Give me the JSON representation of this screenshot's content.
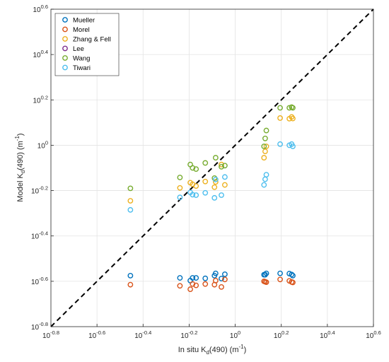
{
  "chart_data": {
    "type": "scatter",
    "xscale": "log",
    "yscale": "log",
    "xlim_log10": [
      -0.8,
      0.6
    ],
    "ylim_log10": [
      -0.8,
      0.6
    ],
    "grid": true,
    "legend_position": "top-left",
    "x_tick_labels": {
      "base": [
        "10",
        "10",
        "10",
        "10",
        "10",
        "10",
        "10",
        "10"
      ],
      "exponent": [
        "-0.8",
        "-0.6",
        "-0.4",
        "-0.2",
        "0",
        "0.2",
        "0.4",
        "0.6"
      ]
    },
    "y_tick_labels": {
      "base": [
        "10",
        "10",
        "10",
        "10",
        "10",
        "10",
        "10",
        "10"
      ],
      "exponent": [
        "-0.8",
        "-0.6",
        "-0.4",
        "-0.2",
        "0",
        "0.2",
        "0.4",
        "0.6"
      ]
    },
    "xlabel": {
      "pre": "In situ K",
      "sub": "d",
      "mid": "(490) (m",
      "sup": "-1",
      "post": ")"
    },
    "ylabel": {
      "pre": "Model K",
      "sub": "d",
      "mid": "(490) (m",
      "sup": "-1",
      "post": ")"
    },
    "reference_line": {
      "style": "dashed",
      "color": "#000000",
      "from_log10": [
        -0.8,
        -0.8
      ],
      "to_log10": [
        0.6,
        0.6
      ]
    },
    "x_log10": [
      -0.455,
      -0.24,
      -0.195,
      -0.185,
      -0.17,
      -0.13,
      -0.09,
      -0.085,
      -0.06,
      -0.045,
      0.125,
      0.13,
      0.135,
      0.195,
      0.235,
      0.245,
      0.25
    ],
    "series": [
      {
        "name": "Mueller",
        "color": "#0072BD",
        "y_log10": [
          -0.575,
          -0.585,
          -0.597,
          -0.585,
          -0.585,
          -0.587,
          -0.575,
          -0.565,
          -0.588,
          -0.569,
          -0.571,
          -0.571,
          -0.565,
          -0.565,
          -0.566,
          -0.57,
          -0.575
        ]
      },
      {
        "name": "Morel",
        "color": "#D95319",
        "y_log10": [
          -0.615,
          -0.62,
          -0.635,
          -0.612,
          -0.618,
          -0.612,
          -0.615,
          -0.597,
          -0.625,
          -0.592,
          -0.6,
          -0.602,
          -0.604,
          -0.592,
          -0.598,
          -0.603,
          -0.605
        ]
      },
      {
        "name": "Zhang & Fell",
        "color": "#EDB120",
        "y_log10": [
          -0.245,
          -0.188,
          -0.165,
          -0.172,
          -0.18,
          -0.16,
          -0.185,
          -0.162,
          -0.085,
          -0.175,
          -0.055,
          -0.027,
          -0.005,
          0.12,
          0.117,
          0.125,
          0.118
        ]
      },
      {
        "name": "Lee",
        "color": "#7E2F8E",
        "y_log10": []
      },
      {
        "name": "Wang",
        "color": "#77AC30",
        "y_log10": [
          -0.19,
          -0.142,
          -0.085,
          -0.1,
          -0.105,
          -0.078,
          -0.145,
          -0.055,
          -0.095,
          -0.09,
          -0.005,
          0.03,
          0.065,
          0.165,
          0.165,
          0.168,
          0.165
        ]
      },
      {
        "name": "Tiwari",
        "color": "#4DBEEE",
        "y_log10": [
          -0.285,
          -0.23,
          -0.208,
          -0.218,
          -0.22,
          -0.21,
          -0.232,
          -0.151,
          -0.22,
          -0.14,
          -0.175,
          -0.15,
          -0.13,
          0.005,
          0.0,
          0.005,
          -0.005
        ]
      }
    ]
  }
}
